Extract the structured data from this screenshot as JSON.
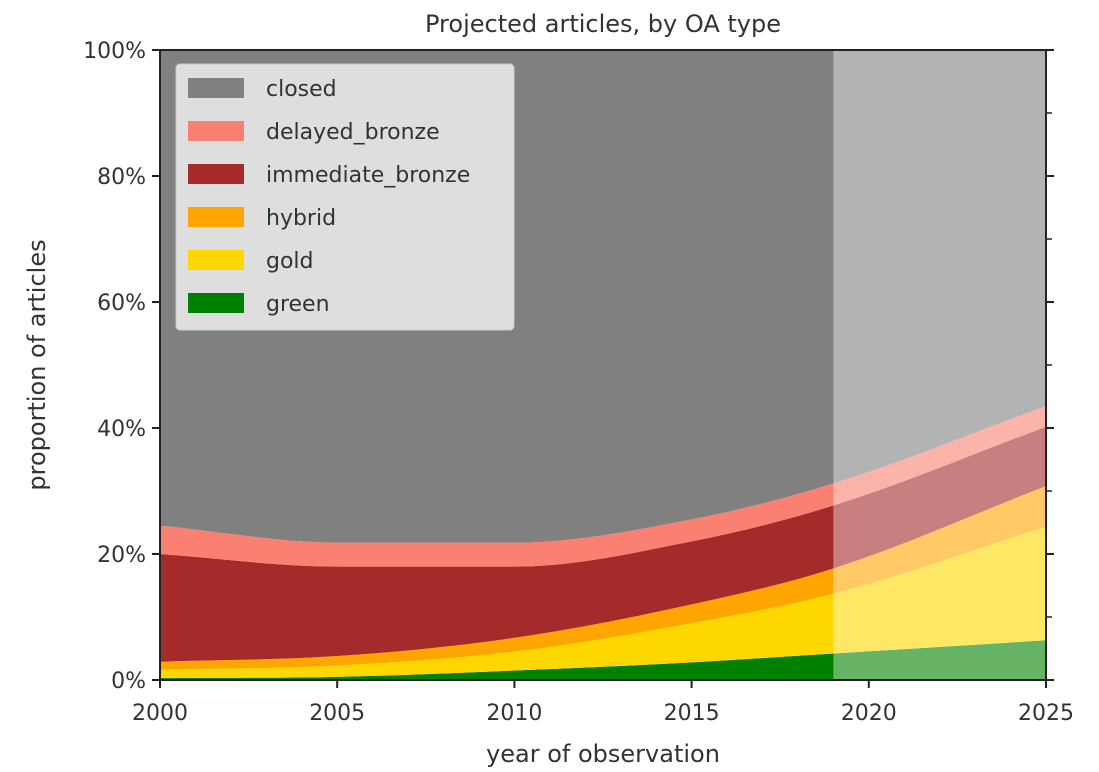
{
  "chart_data": {
    "type": "area",
    "stacked": true,
    "title": "Projected articles, by OA type",
    "xlabel": "year of observation",
    "ylabel": "proportion of articles",
    "xlim": [
      2000,
      2025
    ],
    "ylim": [
      0,
      100
    ],
    "x_ticks": [
      2000,
      2005,
      2010,
      2015,
      2020,
      2025
    ],
    "y_ticks": [
      0,
      20,
      40,
      60,
      80,
      100
    ],
    "y_tick_labels": [
      "0%",
      "20%",
      "40%",
      "60%",
      "80%",
      "100%"
    ],
    "projection_start": 2019,
    "legend_position": "top-left",
    "x": [
      2000,
      2005,
      2010,
      2015,
      2019,
      2025
    ],
    "series": [
      {
        "name": "green",
        "color": "#008000",
        "values": [
          0.3,
          0.5,
          1.5,
          2.8,
          4.2,
          6.3
        ]
      },
      {
        "name": "gold",
        "color": "#ffd700",
        "values": [
          1.3,
          1.8,
          3.0,
          6.2,
          9.5,
          18.0
        ]
      },
      {
        "name": "hybrid",
        "color": "#ffa500",
        "values": [
          1.3,
          1.5,
          2.2,
          3.0,
          4.0,
          6.5
        ]
      },
      {
        "name": "immediate_bronze",
        "color": "#a52a2a",
        "values": [
          17.1,
          14.2,
          11.3,
          10.0,
          10.0,
          9.4
        ]
      },
      {
        "name": "delayed_bronze",
        "color": "#fa8072",
        "values": [
          4.5,
          3.8,
          3.8,
          3.5,
          3.5,
          3.3
        ]
      },
      {
        "name": "closed",
        "color": "#808080",
        "values": [
          75.5,
          78.2,
          78.2,
          74.5,
          68.8,
          56.5
        ]
      }
    ]
  }
}
